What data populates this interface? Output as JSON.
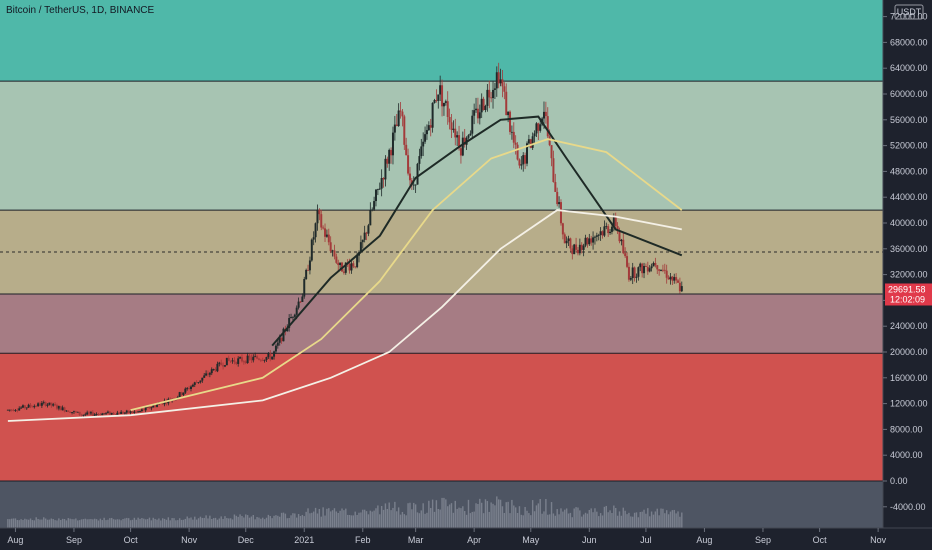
{
  "title": "Bitcoin / TetherUS, 1D, BINANCE",
  "currency_button": "USDT",
  "price_badge": {
    "price": "29691.58",
    "countdown": "12:02:09",
    "color": "#e0394a"
  },
  "colors": {
    "zone_top": "#4fb8a9",
    "zone_upper": "#a7c4b2",
    "zone_mid": "#b7ad8a",
    "zone_low": "#a67c84",
    "zone_bottom": "#d0524f",
    "volume_bg": "#4e5563",
    "candle_up": "#1f2a2a",
    "candle_down": "#a33a3a",
    "ma_fast": "#1e2a26",
    "ma_mid": "#e8d98a",
    "ma_slow": "#f4f0e6"
  },
  "chart_data": {
    "type": "candlestick",
    "title": "Bitcoin / TetherUS, 1D, BINANCE",
    "x_ticks": [
      "Aug",
      "Sep",
      "Oct",
      "Nov",
      "Dec",
      "2021",
      "Feb",
      "Mar",
      "Apr",
      "May",
      "Jun",
      "Jul",
      "Aug",
      "Sep",
      "Oct",
      "Nov"
    ],
    "y_ticks": [
      "72000.00",
      "68000.00",
      "64000.00",
      "60000.00",
      "56000.00",
      "52000.00",
      "48000.00",
      "44000.00",
      "40000.00",
      "36000.00",
      "32000.00",
      "28000.00",
      "24000.00",
      "20000.00",
      "16000.00",
      "12000.00",
      "8000.00",
      "4000.00",
      "0.00",
      "-4000.00"
    ],
    "ylim": [
      -6500,
      74000
    ],
    "last_price": 29691.58,
    "horizontal_levels": [
      62000,
      42000,
      29000,
      19800,
      0
    ],
    "dashed_level": 35500,
    "price_path": [
      {
        "x": "2020-07-28",
        "y": 11000
      },
      {
        "x": "2020-08-17",
        "y": 12000
      },
      {
        "x": "2020-09-05",
        "y": 10300
      },
      {
        "x": "2020-10-05",
        "y": 10700
      },
      {
        "x": "2020-10-25",
        "y": 13000
      },
      {
        "x": "2020-11-20",
        "y": 18500
      },
      {
        "x": "2020-12-15",
        "y": 19300
      },
      {
        "x": "2020-12-31",
        "y": 29000
      },
      {
        "x": "2021-01-08",
        "y": 41000
      },
      {
        "x": "2021-01-20",
        "y": 33000
      },
      {
        "x": "2021-01-29",
        "y": 34000
      },
      {
        "x": "2021-02-10",
        "y": 46000
      },
      {
        "x": "2021-02-21",
        "y": 57000
      },
      {
        "x": "2021-02-27",
        "y": 45000
      },
      {
        "x": "2021-03-13",
        "y": 61000
      },
      {
        "x": "2021-03-25",
        "y": 52000
      },
      {
        "x": "2021-04-14",
        "y": 63500
      },
      {
        "x": "2021-04-25",
        "y": 48000
      },
      {
        "x": "2021-05-08",
        "y": 58000
      },
      {
        "x": "2021-05-12",
        "y": 49000
      },
      {
        "x": "2021-05-19",
        "y": 37000
      },
      {
        "x": "2021-05-24",
        "y": 36000
      },
      {
        "x": "2021-06-03",
        "y": 38000
      },
      {
        "x": "2021-06-15",
        "y": 40000
      },
      {
        "x": "2021-06-22",
        "y": 32000
      },
      {
        "x": "2021-07-06",
        "y": 34000
      },
      {
        "x": "2021-07-20",
        "y": 29700
      }
    ],
    "series": [
      {
        "name": "",
        "color": "#1e2a26",
        "path": [
          {
            "x": "2020-12-15",
            "y": 21000
          },
          {
            "x": "2021-01-15",
            "y": 31500
          },
          {
            "x": "2021-02-10",
            "y": 38000
          },
          {
            "x": "2021-03-01",
            "y": 47000
          },
          {
            "x": "2021-03-25",
            "y": 52000
          },
          {
            "x": "2021-04-15",
            "y": 56000
          },
          {
            "x": "2021-05-05",
            "y": 56500
          },
          {
            "x": "2021-05-20",
            "y": 50000
          },
          {
            "x": "2021-06-15",
            "y": 39000
          },
          {
            "x": "2021-07-20",
            "y": 35000
          }
        ]
      },
      {
        "name": "",
        "color": "#e8d98a",
        "path": [
          {
            "x": "2020-10-01",
            "y": 11000
          },
          {
            "x": "2020-12-10",
            "y": 16000
          },
          {
            "x": "2021-01-10",
            "y": 22000
          },
          {
            "x": "2021-02-10",
            "y": 31000
          },
          {
            "x": "2021-03-10",
            "y": 42000
          },
          {
            "x": "2021-04-10",
            "y": 50000
          },
          {
            "x": "2021-05-10",
            "y": 53000
          },
          {
            "x": "2021-06-10",
            "y": 51000
          },
          {
            "x": "2021-07-20",
            "y": 42000
          }
        ]
      },
      {
        "name": "",
        "color": "#f4f0e6",
        "path": [
          {
            "x": "2020-07-28",
            "y": 9300
          },
          {
            "x": "2020-10-01",
            "y": 10200
          },
          {
            "x": "2020-12-10",
            "y": 12500
          },
          {
            "x": "2021-01-15",
            "y": 16000
          },
          {
            "x": "2021-02-15",
            "y": 20000
          },
          {
            "x": "2021-03-15",
            "y": 27000
          },
          {
            "x": "2021-04-15",
            "y": 36000
          },
          {
            "x": "2021-05-15",
            "y": 42000
          },
          {
            "x": "2021-06-15",
            "y": 41000
          },
          {
            "x": "2021-07-20",
            "y": 39000
          }
        ]
      }
    ]
  }
}
